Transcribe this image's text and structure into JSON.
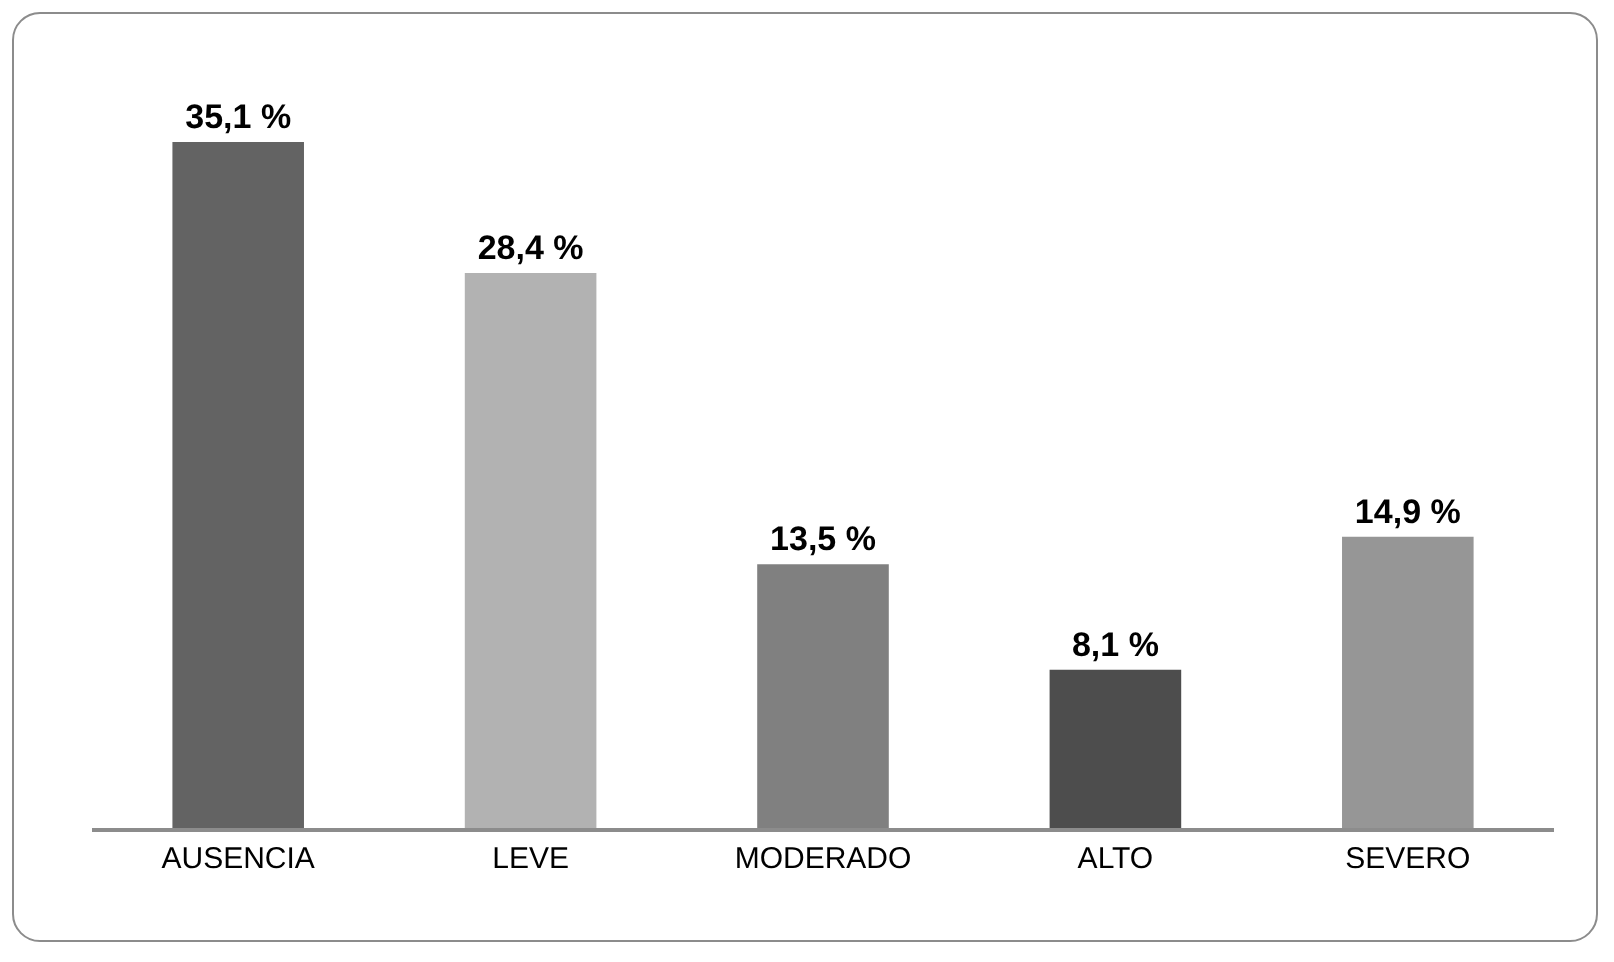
{
  "chart_data": {
    "type": "bar",
    "categories": [
      "AUSENCIA",
      "LEVE",
      "MODERADO",
      "ALTO",
      "SEVERO"
    ],
    "values": [
      35.1,
      28.4,
      13.5,
      8.1,
      14.9
    ],
    "colors": [
      "#636363",
      "#b2b2b2",
      "#808080",
      "#4d4d4d",
      "#969696"
    ],
    "value_labels": [
      "35,1 %",
      "28,4 %",
      "13,5 %",
      "8,1 %",
      "14,9 %"
    ]
  }
}
